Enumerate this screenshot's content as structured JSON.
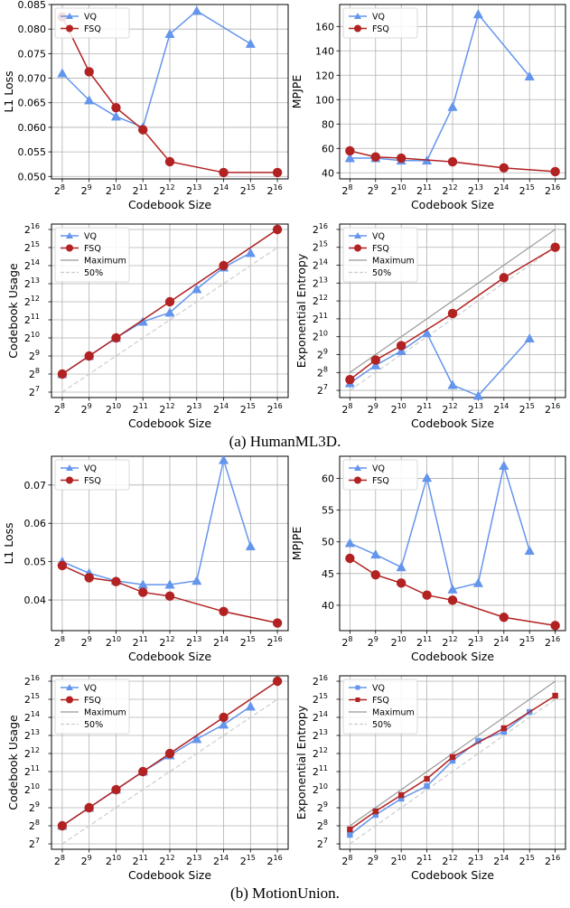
{
  "captions": {
    "a": "(a) HumanML3D.",
    "b": "(b) MotionUnion."
  },
  "colors": {
    "vq": "#6495ED",
    "fsq": "#B22222",
    "maximum": "#999999",
    "half": "#cccccc"
  },
  "chart_data": [
    {
      "type": "line",
      "panel": "HumanML3D",
      "xlabel": "Codebook Size",
      "ylabel": "L1 Loss",
      "x_exponents": [
        8,
        9,
        10,
        11,
        12,
        13,
        14,
        15,
        16
      ],
      "x_tick_prefix": "2",
      "ylim": [
        0.0495,
        0.085
      ],
      "yticks": [
        0.05,
        0.055,
        0.06,
        0.065,
        0.07,
        0.075,
        0.08,
        0.085
      ],
      "ytick_labels": [
        "0.050",
        "0.055",
        "0.060",
        "0.065",
        "0.070",
        "0.075",
        "0.080",
        "0.085"
      ],
      "legend": {
        "position": "top-left",
        "entries": [
          "VQ",
          "FSQ"
        ]
      },
      "grid": true,
      "series": [
        {
          "name": "VQ",
          "marker": "triangle",
          "x": [
            8,
            9,
            10,
            11,
            12,
            13,
            15
          ],
          "y": [
            0.071,
            0.0655,
            0.0622,
            0.06,
            0.079,
            0.0837,
            0.077
          ]
        },
        {
          "name": "FSQ",
          "marker": "circle",
          "x": [
            8,
            9,
            10,
            11,
            12,
            14,
            16
          ],
          "y": [
            0.0825,
            0.0713,
            0.064,
            0.0595,
            0.053,
            0.0508,
            0.0508
          ]
        }
      ]
    },
    {
      "type": "line",
      "panel": "HumanML3D",
      "xlabel": "Codebook Size",
      "ylabel": "MPJPE",
      "x_exponents": [
        8,
        9,
        10,
        11,
        12,
        13,
        14,
        15,
        16
      ],
      "x_tick_prefix": "2",
      "ylim": [
        35,
        178
      ],
      "yticks": [
        40,
        60,
        80,
        100,
        120,
        140,
        160
      ],
      "ytick_labels": [
        "40",
        "60",
        "80",
        "100",
        "120",
        "140",
        "160"
      ],
      "legend": {
        "position": "top-left",
        "entries": [
          "VQ",
          "FSQ"
        ]
      },
      "grid": true,
      "series": [
        {
          "name": "VQ",
          "marker": "triangle",
          "x": [
            8,
            9,
            10,
            11,
            12,
            13,
            15
          ],
          "y": [
            52,
            52,
            50,
            50,
            94,
            170,
            119
          ]
        },
        {
          "name": "FSQ",
          "marker": "circle",
          "x": [
            8,
            9,
            10,
            12,
            14,
            16
          ],
          "y": [
            58,
            53,
            52,
            49,
            44,
            41
          ]
        }
      ]
    },
    {
      "type": "line",
      "panel": "HumanML3D",
      "xlabel": "Codebook Size",
      "ylabel": "Codebook Usage",
      "x_exponents": [
        8,
        9,
        10,
        11,
        12,
        13,
        14,
        15,
        16
      ],
      "x_tick_prefix": "2",
      "y_log2": true,
      "ylim_exp": [
        6.7,
        16.3
      ],
      "ytick_exponents": [
        7,
        8,
        9,
        10,
        11,
        12,
        13,
        14,
        15,
        16
      ],
      "legend": {
        "position": "top-left",
        "entries": [
          "VQ",
          "FSQ",
          "Maximum",
          "50%"
        ]
      },
      "grid": true,
      "series": [
        {
          "name": "VQ",
          "marker": "triangle",
          "x": [
            8,
            9,
            10,
            11,
            12,
            13,
            14,
            15
          ],
          "y_exp": [
            8,
            9,
            10,
            10.9,
            11.4,
            12.7,
            13.9,
            14.7
          ]
        },
        {
          "name": "FSQ",
          "marker": "circle",
          "x": [
            8,
            9,
            10,
            12,
            14,
            16
          ],
          "y_exp": [
            8,
            9,
            10,
            12,
            14,
            16
          ]
        },
        {
          "name": "Maximum",
          "style": "solid",
          "x": [
            8,
            16
          ],
          "y_exp": [
            8,
            16
          ]
        },
        {
          "name": "50%",
          "style": "dashed",
          "x": [
            8,
            16
          ],
          "y_exp": [
            7,
            15
          ]
        }
      ]
    },
    {
      "type": "line",
      "panel": "HumanML3D",
      "xlabel": "Codebook Size",
      "ylabel": "Exponential Entropy",
      "x_exponents": [
        8,
        9,
        10,
        11,
        12,
        13,
        14,
        15,
        16
      ],
      "x_tick_prefix": "2",
      "y_log2": true,
      "ylim_exp": [
        6.6,
        16.3
      ],
      "ytick_exponents": [
        7,
        8,
        9,
        10,
        11,
        12,
        13,
        14,
        15,
        16
      ],
      "legend": {
        "position": "top-left",
        "entries": [
          "VQ",
          "FSQ",
          "Maximum",
          "50%"
        ]
      },
      "grid": true,
      "series": [
        {
          "name": "VQ",
          "marker": "triangle",
          "x": [
            8,
            9,
            10,
            11,
            12,
            13,
            15
          ],
          "y_exp": [
            7.4,
            8.4,
            9.2,
            10.2,
            7.3,
            6.7,
            9.9
          ]
        },
        {
          "name": "FSQ",
          "marker": "circle",
          "x": [
            8,
            9,
            10,
            12,
            14,
            16
          ],
          "y_exp": [
            7.6,
            8.7,
            9.5,
            11.3,
            13.3,
            15
          ]
        },
        {
          "name": "Maximum",
          "style": "solid",
          "x": [
            8,
            16
          ],
          "y_exp": [
            8,
            16
          ]
        },
        {
          "name": "50%",
          "style": "dashed",
          "x": [
            8,
            16
          ],
          "y_exp": [
            7,
            15
          ]
        }
      ]
    },
    {
      "type": "line",
      "panel": "MotionUnion",
      "xlabel": "Codebook Size",
      "ylabel": "L1 Loss",
      "x_exponents": [
        8,
        9,
        10,
        11,
        12,
        13,
        14,
        15,
        16
      ],
      "x_tick_prefix": "2",
      "ylim": [
        0.032,
        0.0775
      ],
      "yticks": [
        0.04,
        0.05,
        0.06,
        0.07
      ],
      "ytick_labels": [
        "0.04",
        "0.05",
        "0.06",
        "0.07"
      ],
      "legend": {
        "position": "top-left",
        "entries": [
          "VQ",
          "FSQ"
        ]
      },
      "grid": true,
      "series": [
        {
          "name": "VQ",
          "marker": "triangle",
          "x": [
            8,
            9,
            10,
            11,
            12,
            13,
            14,
            15
          ],
          "y": [
            0.05,
            0.047,
            0.045,
            0.044,
            0.044,
            0.045,
            0.0765,
            0.054
          ]
        },
        {
          "name": "FSQ",
          "marker": "circle",
          "x": [
            8,
            9,
            10,
            11,
            12,
            14,
            16
          ],
          "y": [
            0.049,
            0.0458,
            0.0448,
            0.042,
            0.041,
            0.037,
            0.034
          ]
        }
      ]
    },
    {
      "type": "line",
      "panel": "MotionUnion",
      "xlabel": "Codebook Size",
      "ylabel": "MPJPE",
      "x_exponents": [
        8,
        9,
        10,
        11,
        12,
        13,
        14,
        15,
        16
      ],
      "x_tick_prefix": "2",
      "ylim": [
        36,
        63.5
      ],
      "yticks": [
        40,
        45,
        50,
        55,
        60
      ],
      "ytick_labels": [
        "40",
        "45",
        "50",
        "55",
        "60"
      ],
      "legend": {
        "position": "top-left",
        "entries": [
          "VQ",
          "FSQ"
        ]
      },
      "grid": true,
      "series": [
        {
          "name": "VQ",
          "marker": "triangle",
          "x": [
            8,
            9,
            10,
            11,
            12,
            13,
            14,
            15
          ],
          "y": [
            49.8,
            48,
            46,
            60.1,
            42.5,
            43.5,
            62,
            48.6
          ]
        },
        {
          "name": "FSQ",
          "marker": "circle",
          "x": [
            8,
            9,
            10,
            11,
            12,
            14,
            16
          ],
          "y": [
            47.4,
            44.8,
            43.5,
            41.6,
            40.8,
            38.1,
            36.8
          ]
        }
      ]
    },
    {
      "type": "line",
      "panel": "MotionUnion",
      "xlabel": "Codebook Size",
      "ylabel": "Codebook Usage",
      "x_exponents": [
        8,
        9,
        10,
        11,
        12,
        13,
        14,
        15,
        16
      ],
      "x_tick_prefix": "2",
      "y_log2": true,
      "ylim_exp": [
        6.7,
        16.3
      ],
      "ytick_exponents": [
        7,
        8,
        9,
        10,
        11,
        12,
        13,
        14,
        15,
        16
      ],
      "legend": {
        "position": "top-left",
        "entries": [
          "VQ",
          "FSQ",
          "Maximum",
          "50%"
        ]
      },
      "grid": true,
      "series": [
        {
          "name": "VQ",
          "marker": "triangle",
          "x": [
            8,
            9,
            10,
            11,
            12,
            13,
            14,
            15
          ],
          "y_exp": [
            8,
            9,
            10,
            11,
            11.9,
            12.8,
            13.6,
            14.6
          ]
        },
        {
          "name": "FSQ",
          "marker": "circle",
          "x": [
            8,
            9,
            10,
            11,
            12,
            14,
            16
          ],
          "y_exp": [
            8,
            9,
            10,
            11,
            12,
            14,
            16
          ]
        },
        {
          "name": "Maximum",
          "style": "solid",
          "x": [
            8,
            16
          ],
          "y_exp": [
            8,
            16
          ]
        },
        {
          "name": "50%",
          "style": "dashed",
          "x": [
            8,
            16
          ],
          "y_exp": [
            7,
            15
          ]
        }
      ]
    },
    {
      "type": "line",
      "panel": "MotionUnion",
      "xlabel": "Codebook Size",
      "ylabel": "Exponential Entropy",
      "x_exponents": [
        8,
        9,
        10,
        11,
        12,
        13,
        14,
        15,
        16
      ],
      "x_tick_prefix": "2",
      "y_log2": true,
      "ylim_exp": [
        6.7,
        16.3
      ],
      "ytick_exponents": [
        7,
        8,
        9,
        10,
        11,
        12,
        13,
        14,
        15,
        16
      ],
      "legend": {
        "position": "top-left",
        "entries": [
          "VQ",
          "FSQ",
          "Maximum",
          "50%"
        ]
      },
      "grid": true,
      "series": [
        {
          "name": "VQ",
          "marker": "square",
          "x": [
            8,
            9,
            10,
            11,
            12,
            13,
            14,
            15
          ],
          "y_exp": [
            7.5,
            8.6,
            9.5,
            10.2,
            11.6,
            12.7,
            13.2,
            14.3
          ]
        },
        {
          "name": "FSQ",
          "marker": "square",
          "x": [
            8,
            9,
            10,
            11,
            12,
            14,
            16
          ],
          "y_exp": [
            7.8,
            8.8,
            9.7,
            10.6,
            11.8,
            13.4,
            15.2
          ]
        },
        {
          "name": "Maximum",
          "style": "solid",
          "x": [
            8,
            16
          ],
          "y_exp": [
            8,
            16
          ]
        },
        {
          "name": "50%",
          "style": "dashed",
          "x": [
            8,
            16
          ],
          "y_exp": [
            7,
            15
          ]
        }
      ]
    }
  ]
}
